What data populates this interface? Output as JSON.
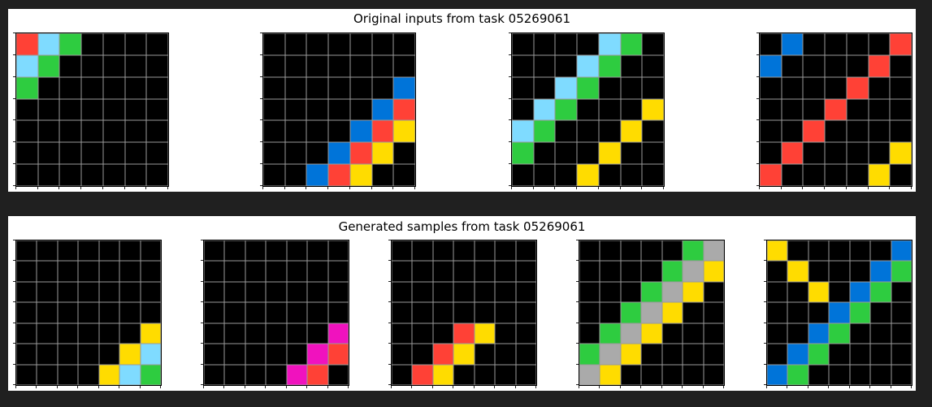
{
  "palette": {
    "0": "#000000",
    "1": "#0074D9",
    "2": "#FF4136",
    "3": "#2ECC40",
    "4": "#FFDC00",
    "5": "#AAAAAA",
    "6": "#F012BE",
    "8": "#7FDBFF"
  },
  "top_panel": {
    "title": "Original inputs from task 05269061",
    "grids": [
      [
        [
          2,
          8,
          3,
          0,
          0,
          0,
          0
        ],
        [
          8,
          3,
          0,
          0,
          0,
          0,
          0
        ],
        [
          3,
          0,
          0,
          0,
          0,
          0,
          0
        ],
        [
          0,
          0,
          0,
          0,
          0,
          0,
          0
        ],
        [
          0,
          0,
          0,
          0,
          0,
          0,
          0
        ],
        [
          0,
          0,
          0,
          0,
          0,
          0,
          0
        ],
        [
          0,
          0,
          0,
          0,
          0,
          0,
          0
        ]
      ],
      [
        [
          0,
          0,
          0,
          0,
          0,
          0,
          0
        ],
        [
          0,
          0,
          0,
          0,
          0,
          0,
          0
        ],
        [
          0,
          0,
          0,
          0,
          0,
          0,
          1
        ],
        [
          0,
          0,
          0,
          0,
          0,
          1,
          2
        ],
        [
          0,
          0,
          0,
          0,
          1,
          2,
          4
        ],
        [
          0,
          0,
          0,
          1,
          2,
          4,
          0
        ],
        [
          0,
          0,
          1,
          2,
          4,
          0,
          0
        ]
      ],
      [
        [
          0,
          0,
          0,
          0,
          8,
          3,
          0
        ],
        [
          0,
          0,
          0,
          8,
          3,
          0,
          0
        ],
        [
          0,
          0,
          8,
          3,
          0,
          0,
          0
        ],
        [
          0,
          8,
          3,
          0,
          0,
          0,
          4
        ],
        [
          8,
          3,
          0,
          0,
          0,
          4,
          0
        ],
        [
          3,
          0,
          0,
          0,
          4,
          0,
          0
        ],
        [
          0,
          0,
          0,
          4,
          0,
          0,
          0
        ]
      ],
      [
        [
          0,
          1,
          0,
          0,
          0,
          0,
          2
        ],
        [
          1,
          0,
          0,
          0,
          0,
          2,
          0
        ],
        [
          0,
          0,
          0,
          0,
          2,
          0,
          0
        ],
        [
          0,
          0,
          0,
          2,
          0,
          0,
          0
        ],
        [
          0,
          0,
          2,
          0,
          0,
          0,
          0
        ],
        [
          0,
          2,
          0,
          0,
          0,
          0,
          4
        ],
        [
          2,
          0,
          0,
          0,
          0,
          4,
          0
        ]
      ]
    ]
  },
  "bottom_panel": {
    "title": "Generated samples from task 05269061",
    "grids": [
      [
        [
          0,
          0,
          0,
          0,
          0,
          0,
          0
        ],
        [
          0,
          0,
          0,
          0,
          0,
          0,
          0
        ],
        [
          0,
          0,
          0,
          0,
          0,
          0,
          0
        ],
        [
          0,
          0,
          0,
          0,
          0,
          0,
          0
        ],
        [
          0,
          0,
          0,
          0,
          0,
          0,
          4
        ],
        [
          0,
          0,
          0,
          0,
          0,
          4,
          8
        ],
        [
          0,
          0,
          0,
          0,
          4,
          8,
          3
        ]
      ],
      [
        [
          0,
          0,
          0,
          0,
          0,
          0,
          0
        ],
        [
          0,
          0,
          0,
          0,
          0,
          0,
          0
        ],
        [
          0,
          0,
          0,
          0,
          0,
          0,
          0
        ],
        [
          0,
          0,
          0,
          0,
          0,
          0,
          0
        ],
        [
          0,
          0,
          0,
          0,
          0,
          0,
          6
        ],
        [
          0,
          0,
          0,
          0,
          0,
          6,
          2
        ],
        [
          0,
          0,
          0,
          0,
          6,
          2,
          0
        ]
      ],
      [
        [
          0,
          0,
          0,
          0,
          0,
          0,
          0
        ],
        [
          0,
          0,
          0,
          0,
          0,
          0,
          0
        ],
        [
          0,
          0,
          0,
          0,
          0,
          0,
          0
        ],
        [
          0,
          0,
          0,
          0,
          0,
          0,
          0
        ],
        [
          0,
          0,
          0,
          2,
          4,
          0,
          0
        ],
        [
          0,
          0,
          2,
          4,
          0,
          0,
          0
        ],
        [
          0,
          2,
          4,
          0,
          0,
          0,
          0
        ]
      ],
      [
        [
          0,
          0,
          0,
          0,
          0,
          3,
          5
        ],
        [
          0,
          0,
          0,
          0,
          3,
          5,
          4
        ],
        [
          0,
          0,
          0,
          3,
          5,
          4,
          0
        ],
        [
          0,
          0,
          3,
          5,
          4,
          0,
          0
        ],
        [
          0,
          3,
          5,
          4,
          0,
          0,
          0
        ],
        [
          3,
          5,
          4,
          0,
          0,
          0,
          0
        ],
        [
          5,
          4,
          0,
          0,
          0,
          0,
          0
        ]
      ],
      [
        [
          4,
          0,
          0,
          0,
          0,
          0,
          1
        ],
        [
          0,
          4,
          0,
          0,
          0,
          1,
          3
        ],
        [
          0,
          0,
          4,
          0,
          1,
          3,
          0
        ],
        [
          0,
          0,
          0,
          1,
          3,
          0,
          0
        ],
        [
          0,
          0,
          1,
          3,
          0,
          0,
          0
        ],
        [
          0,
          1,
          3,
          0,
          0,
          0,
          0
        ],
        [
          1,
          3,
          0,
          0,
          0,
          0,
          0
        ]
      ]
    ]
  }
}
